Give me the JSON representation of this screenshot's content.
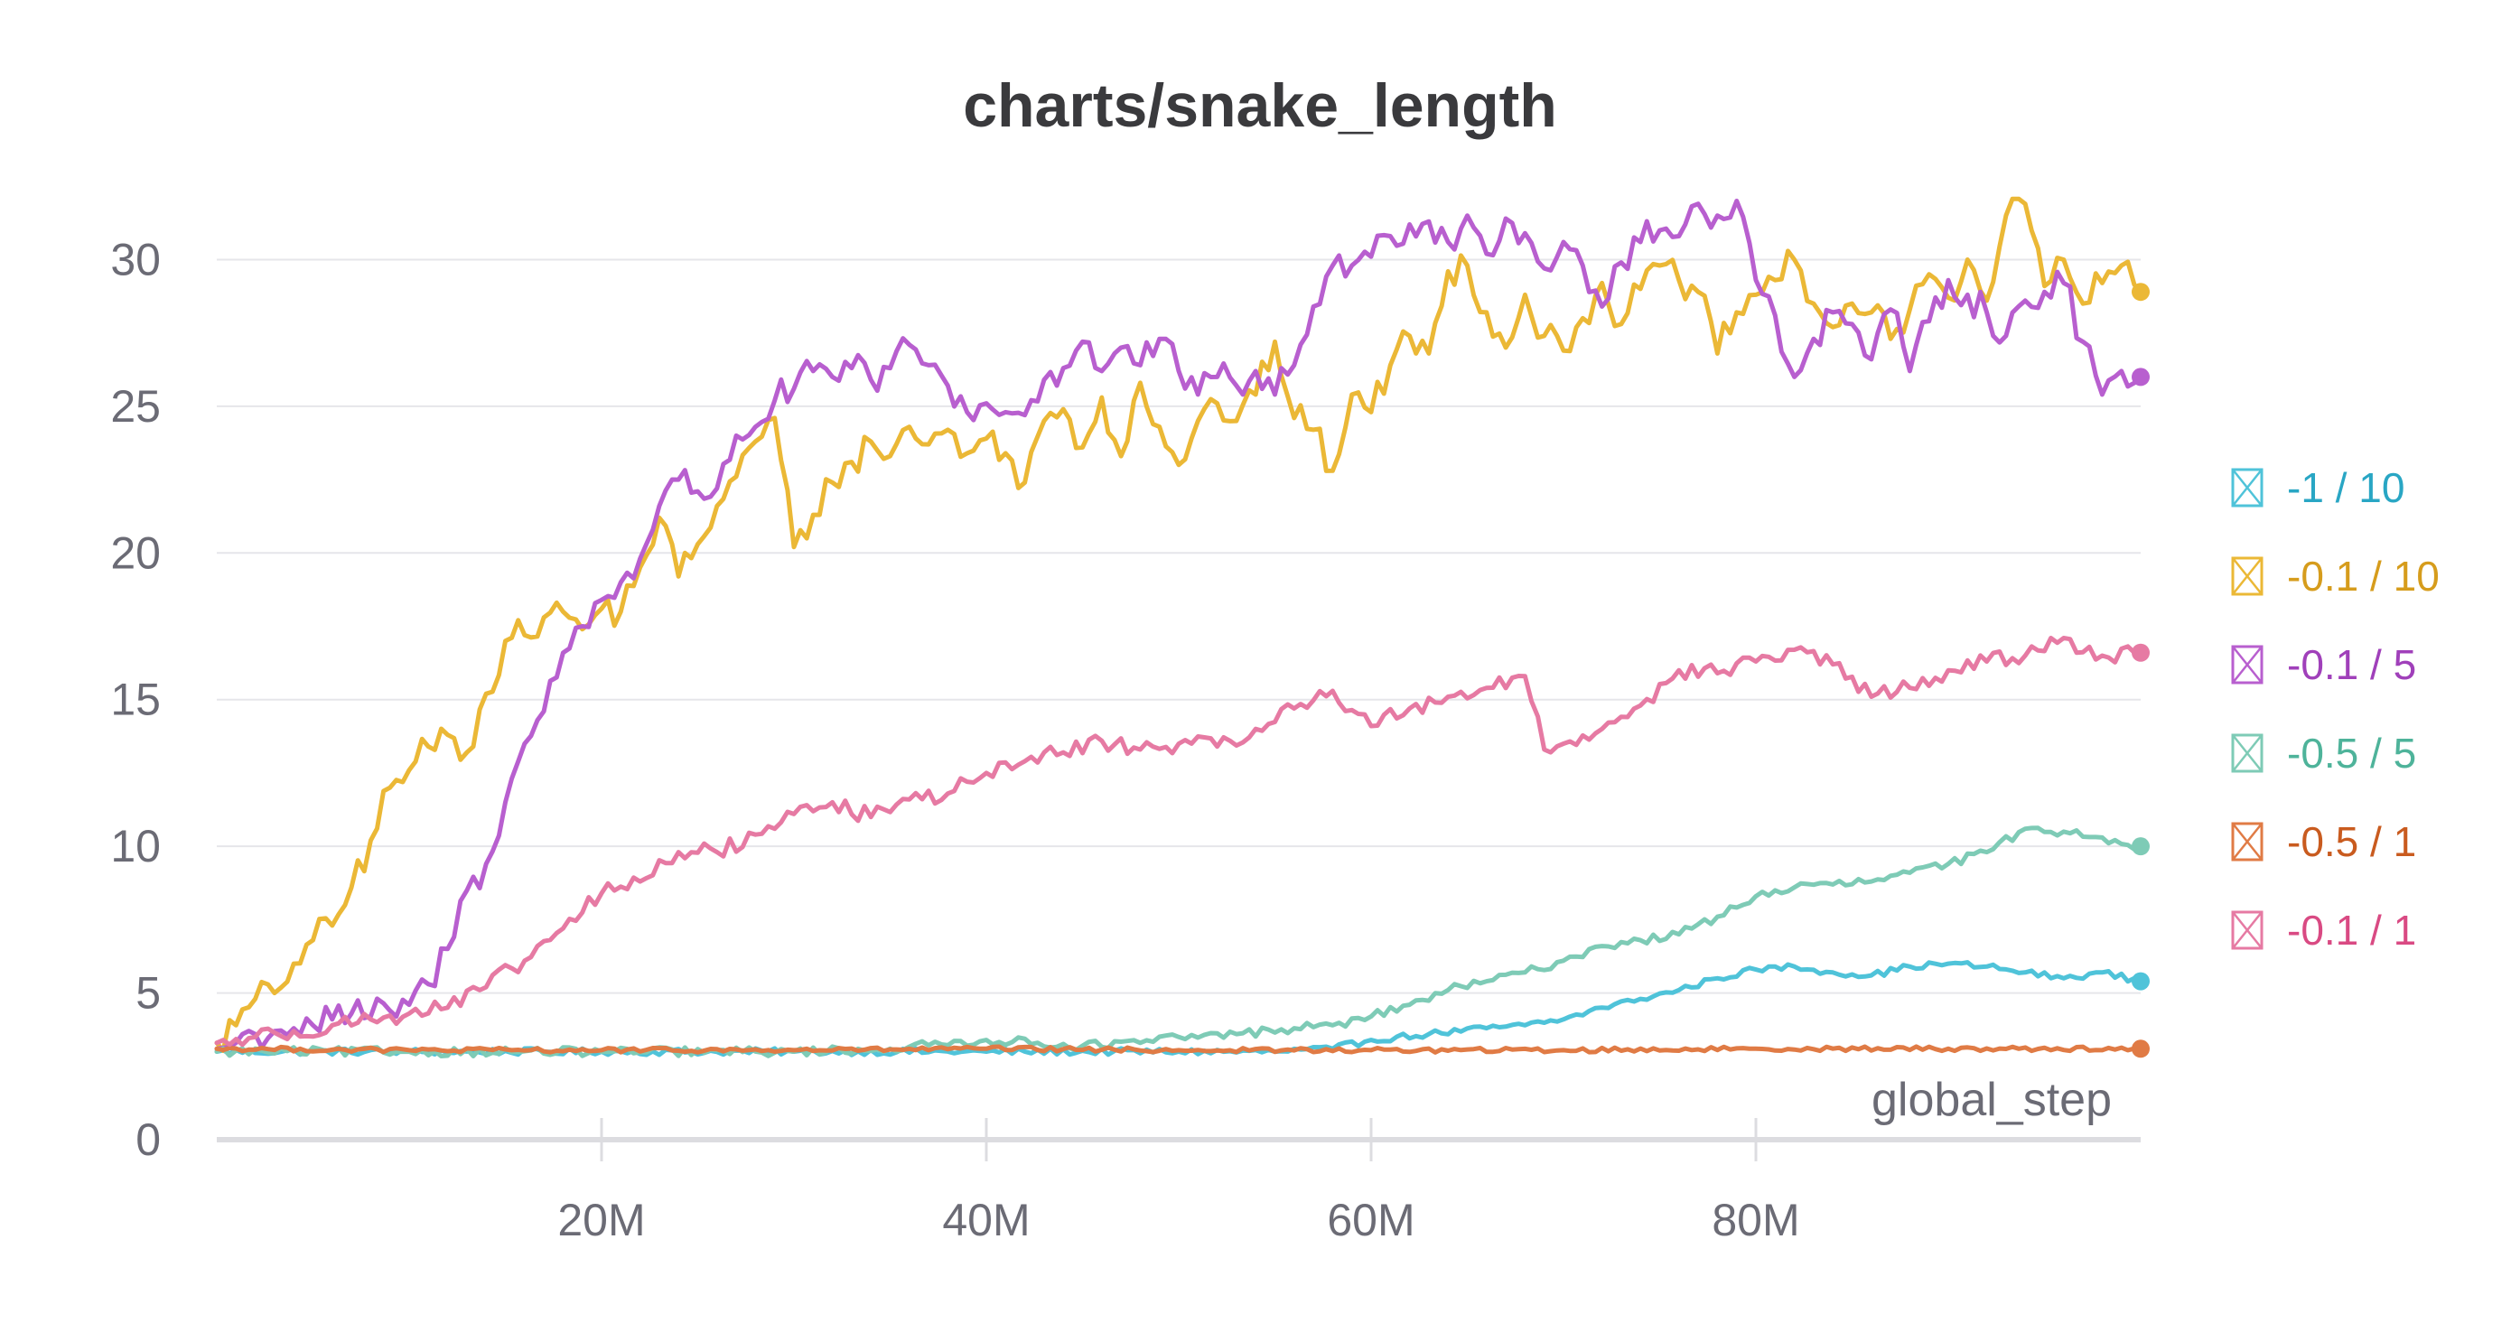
{
  "chart_data": {
    "type": "line",
    "title": "charts/snake_length",
    "xlabel": "global_step",
    "ylabel": "",
    "xlim": [
      0,
      100000000
    ],
    "ylim": [
      0,
      33
    ],
    "grid": true,
    "legend_position": "right",
    "x_ticks": [
      {
        "value": 20000000,
        "label": "20M"
      },
      {
        "value": 40000000,
        "label": "40M"
      },
      {
        "value": 60000000,
        "label": "60M"
      },
      {
        "value": 80000000,
        "label": "80M"
      }
    ],
    "y_ticks": [
      {
        "value": 0,
        "label": "0"
      },
      {
        "value": 5,
        "label": "5"
      },
      {
        "value": 10,
        "label": "10"
      },
      {
        "value": 15,
        "label": "15"
      },
      {
        "value": 20,
        "label": "20"
      },
      {
        "value": 25,
        "label": "25"
      },
      {
        "value": 30,
        "label": "30"
      }
    ],
    "series": [
      {
        "name": "-1 / 10",
        "color": "#4fc3d9",
        "label_color": "#29a6c4",
        "x": [
          0,
          10000000,
          20000000,
          30000000,
          40000000,
          50000000,
          55000000,
          58000000,
          60000000,
          63000000,
          66000000,
          68000000,
          70000000,
          72000000,
          74000000,
          76000000,
          78000000,
          80000000,
          82000000,
          84000000,
          86000000,
          88000000,
          90000000,
          92000000,
          94000000,
          96000000,
          98000000,
          100000000
        ],
        "values": [
          3.0,
          3.0,
          3.0,
          3.0,
          3.0,
          3.0,
          3.0,
          3.1,
          3.4,
          3.6,
          3.8,
          3.9,
          4.1,
          4.5,
          4.8,
          5.1,
          5.5,
          5.8,
          5.9,
          5.7,
          5.6,
          5.9,
          6.0,
          5.9,
          5.7,
          5.5,
          5.7,
          5.4
        ]
      },
      {
        "name": "-0.1 / 10",
        "color": "#ebb836",
        "label_color": "#d69c1c",
        "x": [
          0,
          1000000,
          2000000,
          3000000,
          4000000,
          5000000,
          6000000,
          7000000,
          8000000,
          9000000,
          10000000,
          11000000,
          12000000,
          13000000,
          14000000,
          15000000,
          16000000,
          17000000,
          18000000,
          19000000,
          20000000,
          21000000,
          22000000,
          23000000,
          24000000,
          25000000,
          26000000,
          27000000,
          28000000,
          29000000,
          30000000,
          31000000,
          32000000,
          33000000,
          34000000,
          35000000,
          36000000,
          37000000,
          38000000,
          39000000,
          40000000,
          41000000,
          42000000,
          43000000,
          44000000,
          45000000,
          46000000,
          47000000,
          48000000,
          49000000,
          50000000,
          51000000,
          52000000,
          53000000,
          54000000,
          55000000,
          56000000,
          57000000,
          58000000,
          59000000,
          60000000,
          61000000,
          62000000,
          63000000,
          64000000,
          65000000,
          66000000,
          67000000,
          68000000,
          69000000,
          70000000,
          71000000,
          72000000,
          73000000,
          74000000,
          75000000,
          76000000,
          77000000,
          78000000,
          79000000,
          80000000,
          81000000,
          82000000,
          83000000,
          84000000,
          85000000,
          86000000,
          87000000,
          88000000,
          89000000,
          90000000,
          91000000,
          92000000,
          93000000,
          94000000,
          95000000,
          96000000,
          97000000,
          98000000,
          99000000,
          100000000
        ],
        "values": [
          3.3,
          3.9,
          4.8,
          5.0,
          6.0,
          6.8,
          7.3,
          8.6,
          10.2,
          12.0,
          12.6,
          13.4,
          13.8,
          13.2,
          15.2,
          17.0,
          17.2,
          17.8,
          18.0,
          17.4,
          18.1,
          18.0,
          19.5,
          21.2,
          19.2,
          20.3,
          21.6,
          22.6,
          23.8,
          24.6,
          20.2,
          21.3,
          22.4,
          23.1,
          23.8,
          23.3,
          24.3,
          23.7,
          24.2,
          23.4,
          23.9,
          23.4,
          22.4,
          24.5,
          24.9,
          23.6,
          25.3,
          23.3,
          25.8,
          24.3,
          23.0,
          24.5,
          25.1,
          24.5,
          25.4,
          27.2,
          24.6,
          24.2,
          22.8,
          25.4,
          24.8,
          26.4,
          27.4,
          26.8,
          29.6,
          29.8,
          28.2,
          27.0,
          28.8,
          27.4,
          26.9,
          28.0,
          29.2,
          27.8,
          29.0,
          29.8,
          29.3,
          28.9,
          26.8,
          28.2,
          28.8,
          29.3,
          30.0,
          28.5,
          27.7,
          28.5,
          28.2,
          27.3,
          28.3,
          29.5,
          28.7,
          30.0,
          28.6,
          31.5,
          31.9,
          29.1,
          30.0,
          28.5,
          29.2,
          29.8,
          28.9
        ]
      },
      {
        "name": "-0.1 / 5",
        "color": "#b85fcf",
        "label_color": "#a040ba",
        "x": [
          0,
          1000000,
          2000000,
          3000000,
          4000000,
          5000000,
          6000000,
          7000000,
          8000000,
          9000000,
          10000000,
          11000000,
          12000000,
          13000000,
          14000000,
          15000000,
          16000000,
          17000000,
          18000000,
          19000000,
          20000000,
          21000000,
          22000000,
          23000000,
          24000000,
          25000000,
          26000000,
          27000000,
          28000000,
          29000000,
          30000000,
          31000000,
          32000000,
          33000000,
          34000000,
          35000000,
          36000000,
          37000000,
          38000000,
          39000000,
          40000000,
          41000000,
          42000000,
          43000000,
          44000000,
          45000000,
          46000000,
          47000000,
          48000000,
          49000000,
          50000000,
          51000000,
          52000000,
          53000000,
          54000000,
          55000000,
          56000000,
          57000000,
          58000000,
          59000000,
          60000000,
          61000000,
          62000000,
          63000000,
          64000000,
          65000000,
          66000000,
          67000000,
          68000000,
          69000000,
          70000000,
          71000000,
          72000000,
          73000000,
          74000000,
          75000000,
          76000000,
          77000000,
          78000000,
          79000000,
          80000000,
          81000000,
          82000000,
          83000000,
          84000000,
          85000000,
          86000000,
          87000000,
          88000000,
          89000000,
          90000000,
          91000000,
          92000000,
          93000000,
          94000000,
          95000000,
          96000000,
          97000000,
          98000000,
          99000000,
          100000000
        ],
        "values": [
          3.1,
          3.3,
          3.6,
          3.7,
          3.8,
          3.9,
          4.1,
          4.3,
          4.2,
          4.4,
          4.6,
          5.3,
          6.5,
          8.5,
          9.4,
          11.5,
          13.5,
          14.6,
          16.6,
          17.5,
          18.4,
          19.0,
          19.8,
          21.6,
          22.5,
          22.1,
          22.2,
          24.0,
          24.3,
          25.2,
          25.6,
          26.2,
          26.0,
          26.3,
          25.9,
          26.3,
          27.1,
          26.4,
          25.7,
          24.8,
          25.1,
          24.8,
          24.7,
          25.9,
          26.3,
          27.2,
          26.2,
          27.0,
          26.4,
          27.3,
          26.2,
          25.4,
          26.0,
          25.7,
          26.2,
          25.4,
          26.4,
          28.4,
          29.8,
          29.8,
          30.1,
          30.8,
          31.2,
          31.3,
          30.6,
          31.5,
          30.2,
          31.4,
          30.9,
          29.7,
          30.6,
          29.8,
          28.4,
          29.9,
          30.6,
          31.0,
          30.8,
          31.9,
          31.5,
          32.0,
          29.3,
          28.1,
          26.0,
          27.3,
          28.2,
          27.8,
          26.6,
          28.3,
          26.2,
          27.9,
          29.3,
          28.8,
          28.2,
          27.4,
          28.6,
          28.9,
          29.2,
          27.2,
          25.4,
          26.2,
          26.0
        ]
      },
      {
        "name": "-0.5 / 5",
        "color": "#7ecbb6",
        "label_color": "#4eb39a",
        "x": [
          0,
          10000000,
          20000000,
          30000000,
          35000000,
          40000000,
          45000000,
          48000000,
          50000000,
          53000000,
          56000000,
          58000000,
          60000000,
          62000000,
          64000000,
          66000000,
          68000000,
          70000000,
          72000000,
          74000000,
          76000000,
          78000000,
          80000000,
          82000000,
          84000000,
          86000000,
          88000000,
          90000000,
          92000000,
          94000000,
          96000000,
          98000000,
          100000000
        ],
        "values": [
          3.0,
          3.0,
          3.0,
          3.0,
          3.1,
          3.4,
          3.2,
          3.3,
          3.5,
          3.6,
          3.8,
          3.9,
          4.2,
          4.6,
          5.1,
          5.4,
          5.7,
          6.1,
          6.6,
          6.8,
          7.0,
          7.6,
          8.3,
          8.6,
          8.7,
          8.8,
          9.1,
          9.4,
          9.8,
          10.6,
          10.5,
          10.3,
          10.0
        ]
      },
      {
        "name": "-0.5 / 1",
        "color": "#e07b45",
        "label_color": "#c95b1f",
        "x": [
          0,
          10000000,
          20000000,
          30000000,
          40000000,
          50000000,
          60000000,
          70000000,
          80000000,
          90000000,
          100000000
        ],
        "values": [
          3.1,
          3.05,
          3.05,
          3.05,
          3.1,
          3.05,
          3.05,
          3.05,
          3.1,
          3.1,
          3.1
        ]
      },
      {
        "name": "-0.1 / 1",
        "color": "#e67aa3",
        "label_color": "#d94a83",
        "x": [
          0,
          2000000,
          4000000,
          6000000,
          8000000,
          10000000,
          12000000,
          14000000,
          16000000,
          18000000,
          20000000,
          22000000,
          24000000,
          26000000,
          28000000,
          30000000,
          32000000,
          34000000,
          36000000,
          38000000,
          40000000,
          42000000,
          44000000,
          46000000,
          48000000,
          50000000,
          52000000,
          54000000,
          56000000,
          58000000,
          60000000,
          62000000,
          64000000,
          66000000,
          68000000,
          69000000,
          70000000,
          72000000,
          74000000,
          76000000,
          78000000,
          80000000,
          82000000,
          84000000,
          86000000,
          88000000,
          90000000,
          92000000,
          94000000,
          96000000,
          98000000,
          100000000
        ],
        "values": [
          3.3,
          3.5,
          3.7,
          3.9,
          4.1,
          4.3,
          4.5,
          5.2,
          6.1,
          7.2,
          8.4,
          8.8,
          9.8,
          9.8,
          10.4,
          11.1,
          11.5,
          11.0,
          11.6,
          11.8,
          12.5,
          12.9,
          13.2,
          13.6,
          13.3,
          13.5,
          13.4,
          14.0,
          14.7,
          15.3,
          14.1,
          14.7,
          15.1,
          15.4,
          15.8,
          13.3,
          13.5,
          14.0,
          14.8,
          16.0,
          15.9,
          16.3,
          16.7,
          16.2,
          15.1,
          15.4,
          16.0,
          16.3,
          16.5,
          17.1,
          16.5,
          16.6
        ]
      }
    ]
  }
}
